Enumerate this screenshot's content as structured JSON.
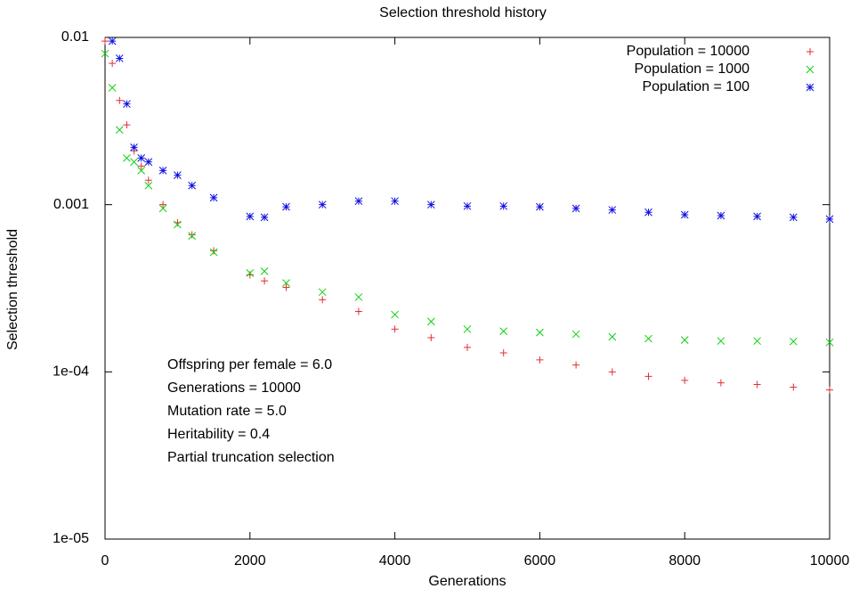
{
  "chart_data": {
    "type": "scatter",
    "title": "Selection threshold history",
    "x_label": "Generations",
    "y_label": "Selection threshold",
    "log_y": true,
    "legend": "top-right",
    "x": [
      0,
      100,
      200,
      300,
      400,
      500,
      600,
      800,
      1000,
      1200,
      1500,
      2000,
      2200,
      2500,
      3000,
      3500,
      4000,
      4500,
      5000,
      5500,
      6000,
      6500,
      7000,
      7500,
      8000,
      8500,
      9000,
      9500,
      10000
    ],
    "series": [
      {
        "name": "Population = 10000",
        "color": "#e03030",
        "marker": "plus",
        "values": [
          0.0095,
          0.007,
          0.0042,
          0.003,
          0.0021,
          0.0017,
          0.0014,
          0.001,
          0.00078,
          0.00066,
          0.00053,
          0.00038,
          0.00035,
          0.00032,
          0.00027,
          0.00023,
          0.00018,
          0.00016,
          0.00014,
          0.00013,
          0.000118,
          0.00011,
          0.0001,
          9.4e-05,
          8.9e-05,
          8.6e-05,
          8.4e-05,
          8.1e-05,
          7.8e-05
        ]
      },
      {
        "name": "Population = 1000",
        "color": "#10d010",
        "marker": "cross",
        "values": [
          0.008,
          0.005,
          0.0028,
          0.0019,
          0.0018,
          0.0016,
          0.0013,
          0.00095,
          0.00076,
          0.00065,
          0.00052,
          0.00039,
          0.0004,
          0.00034,
          0.0003,
          0.00028,
          0.00022,
          0.0002,
          0.00018,
          0.000175,
          0.000172,
          0.000168,
          0.000162,
          0.000158,
          0.000155,
          0.000153,
          0.000153,
          0.000152,
          0.00015
        ]
      },
      {
        "name": "Population = 100",
        "color": "#1010e0",
        "marker": "star",
        "values": [
          null,
          0.0095,
          0.0075,
          0.004,
          0.0022,
          0.0019,
          0.0018,
          0.0016,
          0.0015,
          0.0013,
          0.0011,
          0.00085,
          0.00084,
          0.00097,
          0.001,
          0.00105,
          0.00105,
          0.001,
          0.00098,
          0.00098,
          0.00097,
          0.00095,
          0.00093,
          0.0009,
          0.00087,
          0.00086,
          0.00085,
          0.00084,
          0.00082
        ]
      }
    ],
    "xlim": [
      0,
      10000
    ],
    "xticks": [
      0,
      2000,
      4000,
      6000,
      8000,
      10000
    ],
    "ylim": [
      1e-05,
      0.01
    ],
    "yticks": [
      {
        "value": 1e-05,
        "label": "1e-05"
      },
      {
        "value": 0.0001,
        "label": "1e-04"
      },
      0.001,
      0.01
    ],
    "annotations": [
      "Offspring per female = 6.0",
      "Generations = 10000",
      "Mutation rate = 5.0",
      "Heritability = 0.4",
      "Partial truncation selection"
    ]
  }
}
